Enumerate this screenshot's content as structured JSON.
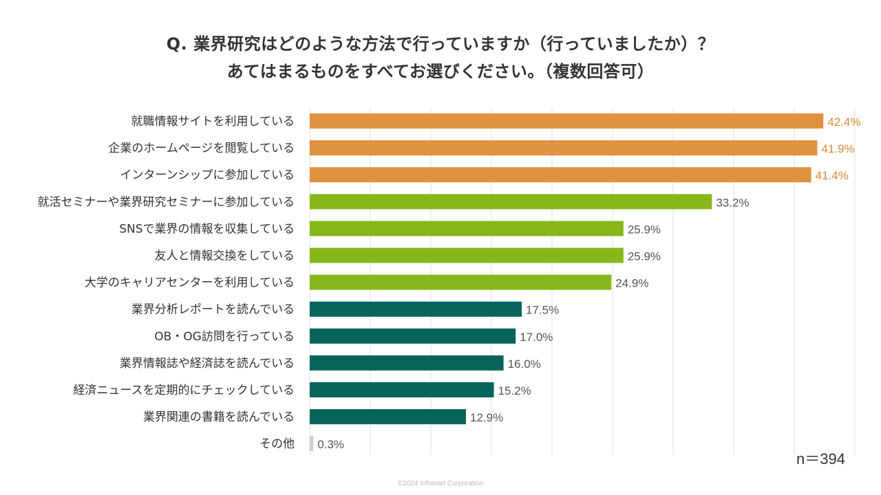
{
  "chart_data": {
    "type": "bar",
    "orientation": "horizontal",
    "title": "Q. 業界研究はどのような方法で行っていますか（行っていましたか）？",
    "subtitle": "あてはまるものをすべてお選びください。（複数回答可）",
    "categories": [
      "就職情報サイトを利用している",
      "企業のホームページを閲覧している",
      "インターンシップに参加している",
      "就活セミナーや業界研究セミナーに参加している",
      "SNSで業界の情報を収集している",
      "友人と情報交換をしている",
      "大学のキャリアセンターを利用している",
      "業界分析レポートを読んでいる",
      "OB・OG訪問を行っている",
      "業界情報誌や経済誌を読んでいる",
      "経済ニュースを定期的にチェックしている",
      "業界関連の書籍を読んでいる",
      "その他"
    ],
    "values": [
      42.4,
      41.9,
      41.4,
      33.2,
      25.9,
      25.9,
      24.9,
      17.5,
      17.0,
      16.0,
      15.2,
      12.9,
      0.3
    ],
    "value_labels": [
      "42.4%",
      "41.9%",
      "41.4%",
      "33.2%",
      "25.9%",
      "25.9%",
      "24.9%",
      "17.5%",
      "17.0%",
      "16.0%",
      "15.2%",
      "12.9%",
      "0.3%"
    ],
    "groups": [
      "top",
      "top",
      "top",
      "mid",
      "mid",
      "mid",
      "mid",
      "low",
      "low",
      "low",
      "low",
      "low",
      "other"
    ],
    "xlim": [
      0,
      45
    ],
    "grid_step": 5,
    "grid": true,
    "sample_size": "n＝394",
    "colors": {
      "top": "#e09240",
      "mid": "#86b81b",
      "low": "#06645a",
      "other": "#d0d0d0",
      "top_label": "#d98a35",
      "default_label": "#555555",
      "grid": "#e2e2e2"
    }
  },
  "footer": {
    "copyright": "©2024 Infomart Corporation"
  }
}
